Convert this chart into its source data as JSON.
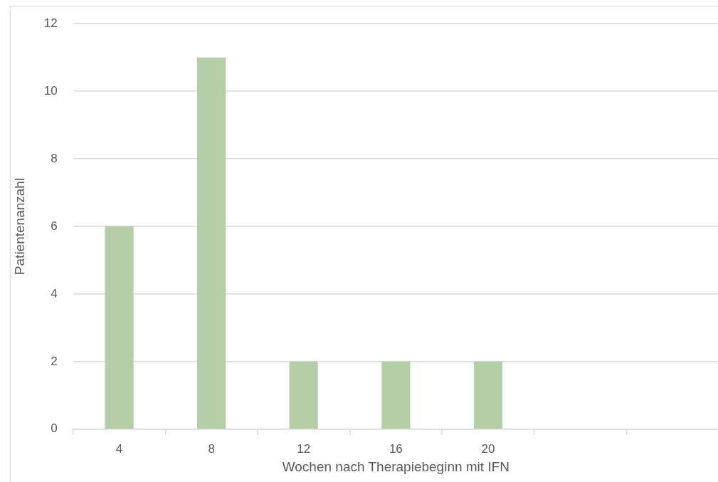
{
  "chart_data": {
    "type": "bar",
    "xlabel": "Wochen nach Therapiebeginn mit IFN",
    "ylabel": "Patientenanzahl",
    "categories": [
      "4",
      "8",
      "12",
      "16",
      "20",
      null,
      null
    ],
    "values": [
      6,
      11,
      2,
      2,
      2,
      null,
      null
    ],
    "color": "#b4cfa8",
    "ylim": [
      0,
      12
    ],
    "yticks": [
      0,
      2,
      4,
      6,
      8,
      10,
      12
    ],
    "grid": "y",
    "legend": false
  }
}
